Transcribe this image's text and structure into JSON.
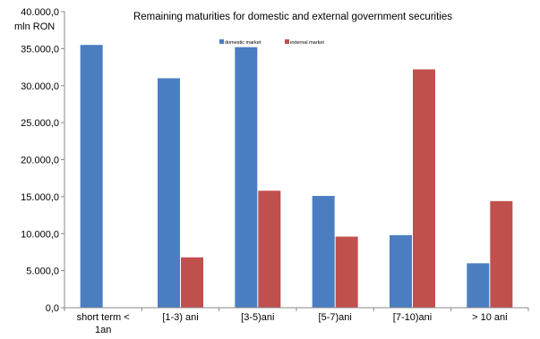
{
  "chart_data": {
    "type": "bar",
    "title": "Remaining maturities for domestic and external government securities",
    "ylabel": "mln RON",
    "ylim": [
      0,
      40000
    ],
    "yticks": [
      0,
      5000,
      10000,
      15000,
      20000,
      25000,
      30000,
      35000,
      40000
    ],
    "ytick_labels": [
      "0,0",
      "5.000,0",
      "10.000,0",
      "15.000,0",
      "20.000,0",
      "25.000,0",
      "30.000,0",
      "35.000,0",
      "40.000,0"
    ],
    "categories": [
      "short term < 1an",
      "[1-3) ani",
      "[3-5)ani",
      "[5-7)ani",
      "[7-10)ani",
      "> 10 ani"
    ],
    "category_lines": [
      [
        "short term <",
        "1an"
      ],
      [
        "[1-3) ani"
      ],
      [
        "[3-5)ani"
      ],
      [
        "[5-7)ani"
      ],
      [
        "[7-10)ani"
      ],
      [
        "> 10 ani"
      ]
    ],
    "series": [
      {
        "name": "domestic market",
        "color": "#4A7EC1",
        "values": [
          35500,
          31000,
          35200,
          15100,
          9800,
          6000
        ]
      },
      {
        "name": "external market",
        "color": "#C0504D",
        "values": [
          0,
          6800,
          15800,
          9600,
          32200,
          14400
        ]
      }
    ],
    "grid": false,
    "legend_position": "top"
  }
}
